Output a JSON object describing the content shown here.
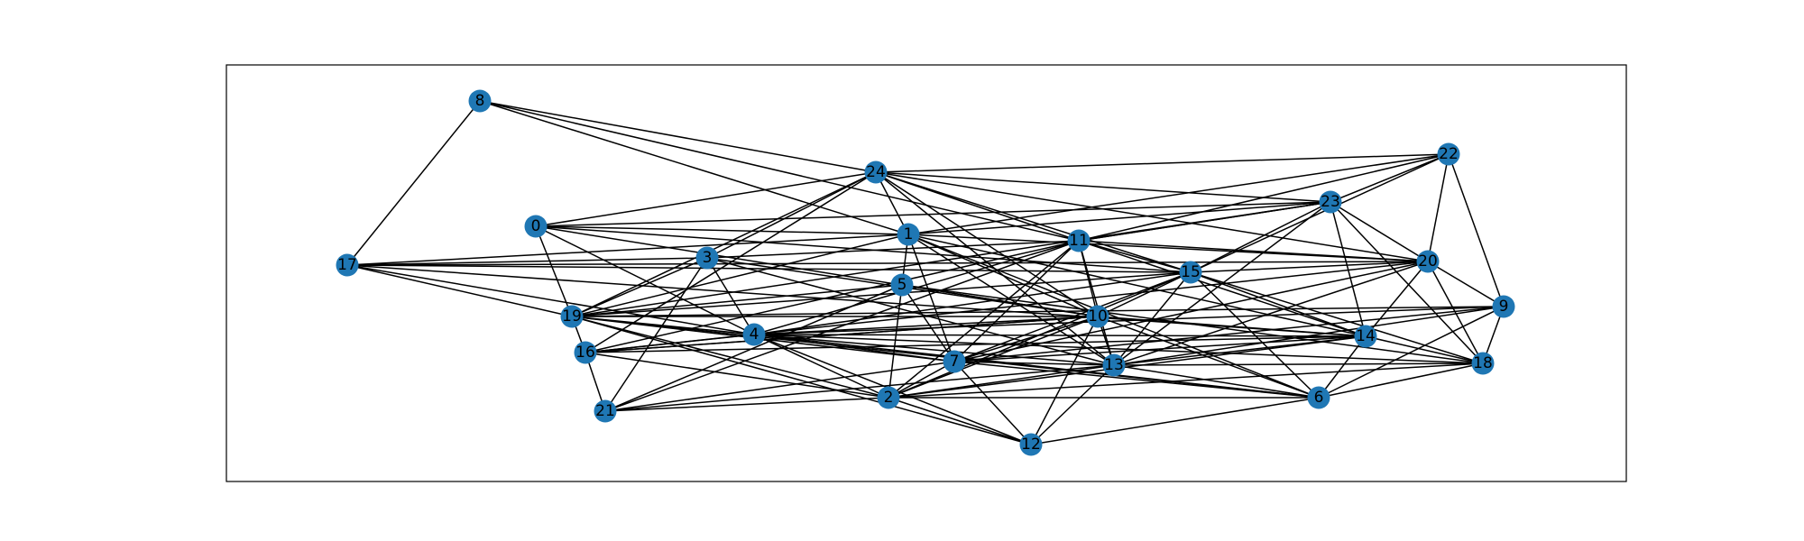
{
  "graph": {
    "node_color": "#1f77b4",
    "edge_color": "#000000",
    "frame_color": "#000000",
    "nodes": [
      {
        "id": "n0",
        "label": "0"
      },
      {
        "id": "n1",
        "label": "1"
      },
      {
        "id": "n2",
        "label": "2"
      },
      {
        "id": "n3",
        "label": "3"
      },
      {
        "id": "n4",
        "label": "4"
      },
      {
        "id": "n5",
        "label": "5"
      },
      {
        "id": "n6",
        "label": "6"
      },
      {
        "id": "n7",
        "label": "7"
      },
      {
        "id": "n8",
        "label": "8"
      },
      {
        "id": "n9",
        "label": "9"
      },
      {
        "id": "n10",
        "label": "10"
      },
      {
        "id": "n11",
        "label": "11"
      },
      {
        "id": "n12",
        "label": "12"
      },
      {
        "id": "n13",
        "label": "13"
      },
      {
        "id": "n14",
        "label": "14"
      },
      {
        "id": "n15",
        "label": "15"
      },
      {
        "id": "n16",
        "label": "16"
      },
      {
        "id": "n17",
        "label": "17"
      },
      {
        "id": "n18",
        "label": "18"
      },
      {
        "id": "n19",
        "label": "19"
      },
      {
        "id": "n20",
        "label": "20"
      },
      {
        "id": "n21",
        "label": "21"
      },
      {
        "id": "n22",
        "label": "22"
      },
      {
        "id": "n23",
        "label": "23"
      },
      {
        "id": "n24",
        "label": "24"
      }
    ],
    "edges": [
      [
        "8",
        "17"
      ],
      [
        "8",
        "24"
      ],
      [
        "8",
        "1"
      ],
      [
        "8",
        "11"
      ],
      [
        "24",
        "22"
      ],
      [
        "24",
        "23"
      ],
      [
        "24",
        "0"
      ],
      [
        "24",
        "1"
      ],
      [
        "24",
        "3"
      ],
      [
        "24",
        "19"
      ],
      [
        "24",
        "16"
      ],
      [
        "24",
        "11"
      ],
      [
        "24",
        "10"
      ],
      [
        "24",
        "15"
      ],
      [
        "24",
        "20"
      ],
      [
        "24",
        "13"
      ],
      [
        "22",
        "11"
      ],
      [
        "22",
        "23"
      ],
      [
        "22",
        "1"
      ],
      [
        "22",
        "20"
      ],
      [
        "22",
        "9"
      ],
      [
        "22",
        "15"
      ],
      [
        "23",
        "0"
      ],
      [
        "23",
        "11"
      ],
      [
        "23",
        "15"
      ],
      [
        "23",
        "14"
      ],
      [
        "23",
        "18"
      ],
      [
        "23",
        "20"
      ],
      [
        "23",
        "13"
      ],
      [
        "23",
        "19"
      ],
      [
        "0",
        "1"
      ],
      [
        "0",
        "4"
      ],
      [
        "0",
        "19"
      ],
      [
        "0",
        "10"
      ],
      [
        "0",
        "15"
      ],
      [
        "1",
        "17"
      ],
      [
        "1",
        "5"
      ],
      [
        "1",
        "7"
      ],
      [
        "1",
        "10"
      ],
      [
        "1",
        "13"
      ],
      [
        "1",
        "14"
      ],
      [
        "1",
        "20"
      ],
      [
        "1",
        "19"
      ],
      [
        "1",
        "23"
      ],
      [
        "1",
        "6"
      ],
      [
        "11",
        "3"
      ],
      [
        "11",
        "15"
      ],
      [
        "11",
        "10"
      ],
      [
        "11",
        "13"
      ],
      [
        "11",
        "7"
      ],
      [
        "11",
        "4"
      ],
      [
        "11",
        "21"
      ],
      [
        "11",
        "2"
      ],
      [
        "11",
        "16"
      ],
      [
        "11",
        "14"
      ],
      [
        "11",
        "20"
      ],
      [
        "11",
        "23"
      ],
      [
        "17",
        "3"
      ],
      [
        "17",
        "4"
      ],
      [
        "17",
        "19"
      ],
      [
        "17",
        "15"
      ],
      [
        "17",
        "14"
      ],
      [
        "17",
        "20"
      ],
      [
        "3",
        "4"
      ],
      [
        "3",
        "13"
      ],
      [
        "3",
        "19"
      ],
      [
        "3",
        "21"
      ],
      [
        "3",
        "10"
      ],
      [
        "5",
        "19"
      ],
      [
        "5",
        "7"
      ],
      [
        "5",
        "10"
      ],
      [
        "5",
        "21"
      ],
      [
        "5",
        "18"
      ],
      [
        "5",
        "2"
      ],
      [
        "15",
        "4"
      ],
      [
        "15",
        "19"
      ],
      [
        "15",
        "13"
      ],
      [
        "15",
        "2"
      ],
      [
        "15",
        "10"
      ],
      [
        "15",
        "6"
      ],
      [
        "15",
        "14"
      ],
      [
        "15",
        "18"
      ],
      [
        "15",
        "7"
      ],
      [
        "15",
        "20"
      ],
      [
        "20",
        "16"
      ],
      [
        "20",
        "7"
      ],
      [
        "20",
        "13"
      ],
      [
        "20",
        "9"
      ],
      [
        "20",
        "14"
      ],
      [
        "20",
        "18"
      ],
      [
        "9",
        "4"
      ],
      [
        "9",
        "19"
      ],
      [
        "9",
        "13"
      ],
      [
        "9",
        "6"
      ],
      [
        "9",
        "18"
      ],
      [
        "9",
        "7"
      ],
      [
        "19",
        "4"
      ],
      [
        "19",
        "16"
      ],
      [
        "19",
        "2"
      ],
      [
        "19",
        "12"
      ],
      [
        "19",
        "6"
      ],
      [
        "19",
        "10"
      ],
      [
        "19",
        "7"
      ],
      [
        "4",
        "16"
      ],
      [
        "4",
        "10"
      ],
      [
        "4",
        "7"
      ],
      [
        "4",
        "2"
      ],
      [
        "4",
        "12"
      ],
      [
        "4",
        "13"
      ],
      [
        "4",
        "14"
      ],
      [
        "4",
        "18"
      ],
      [
        "4",
        "6"
      ],
      [
        "16",
        "21"
      ],
      [
        "16",
        "10"
      ],
      [
        "16",
        "2"
      ],
      [
        "16",
        "14"
      ],
      [
        "10",
        "7"
      ],
      [
        "10",
        "13"
      ],
      [
        "10",
        "12"
      ],
      [
        "10",
        "2"
      ],
      [
        "10",
        "6"
      ],
      [
        "10",
        "14"
      ],
      [
        "10",
        "16"
      ],
      [
        "14",
        "7"
      ],
      [
        "14",
        "13"
      ],
      [
        "14",
        "6"
      ],
      [
        "14",
        "2"
      ],
      [
        "14",
        "18"
      ],
      [
        "7",
        "12"
      ],
      [
        "7",
        "13"
      ],
      [
        "7",
        "2"
      ],
      [
        "7",
        "21"
      ],
      [
        "7",
        "6"
      ],
      [
        "13",
        "2"
      ],
      [
        "13",
        "6"
      ],
      [
        "13",
        "18"
      ],
      [
        "13",
        "12"
      ],
      [
        "2",
        "12"
      ],
      [
        "2",
        "6"
      ],
      [
        "2",
        "18"
      ],
      [
        "21",
        "2"
      ],
      [
        "21",
        "13"
      ],
      [
        "6",
        "12"
      ],
      [
        "6",
        "18"
      ]
    ]
  }
}
